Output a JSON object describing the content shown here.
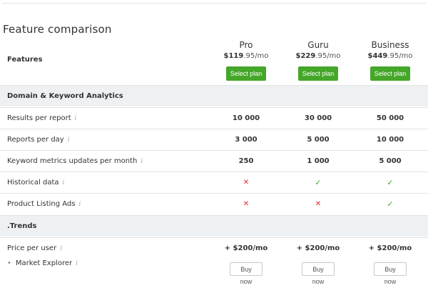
{
  "title": "Feature comparison",
  "features_header": "Features",
  "plans": [
    {
      "name": "Pro",
      "price_main": "$119",
      "price_rest": ".95/mo",
      "select_label": "Select plan",
      "buy_label": "Buy now"
    },
    {
      "name": "Guru",
      "price_main": "$229",
      "price_rest": ".95/mo",
      "select_label": "Select plan",
      "buy_label": "Buy now"
    },
    {
      "name": "Business",
      "price_main": "$449",
      "price_rest": ".95/mo",
      "select_label": "Select plan",
      "buy_label": "Buy now"
    }
  ],
  "sections": {
    "domain": {
      "label": "Domain & Keyword Analytics",
      "rows": [
        {
          "label": "Results per report",
          "values": [
            "10 000",
            "30 000",
            "50 000"
          ]
        },
        {
          "label": "Reports per day",
          "values": [
            "3 000",
            "5 000",
            "10 000"
          ]
        },
        {
          "label": "Keyword metrics updates per month",
          "values": [
            "250",
            "1 000",
            "5 000"
          ]
        },
        {
          "label": "Historical data",
          "values": [
            "✕",
            "✓",
            "✓"
          ]
        },
        {
          "label": "Product Listing Ads",
          "values": [
            "✕",
            "✕",
            "✓"
          ]
        }
      ]
    },
    "trends": {
      "label": ".Trends",
      "price_row": {
        "label": "Price per user",
        "values": [
          "+ $200/mo",
          "+ $200/mo",
          "+ $200/mo"
        ]
      },
      "sub_item": {
        "bullet": "•",
        "label": "Market Explorer"
      }
    }
  },
  "info_glyph": "i",
  "colors": {
    "select_button": "#45a729",
    "check": "#45a729",
    "cross": "#e02b2b",
    "section_bg": "#eef1f3"
  }
}
